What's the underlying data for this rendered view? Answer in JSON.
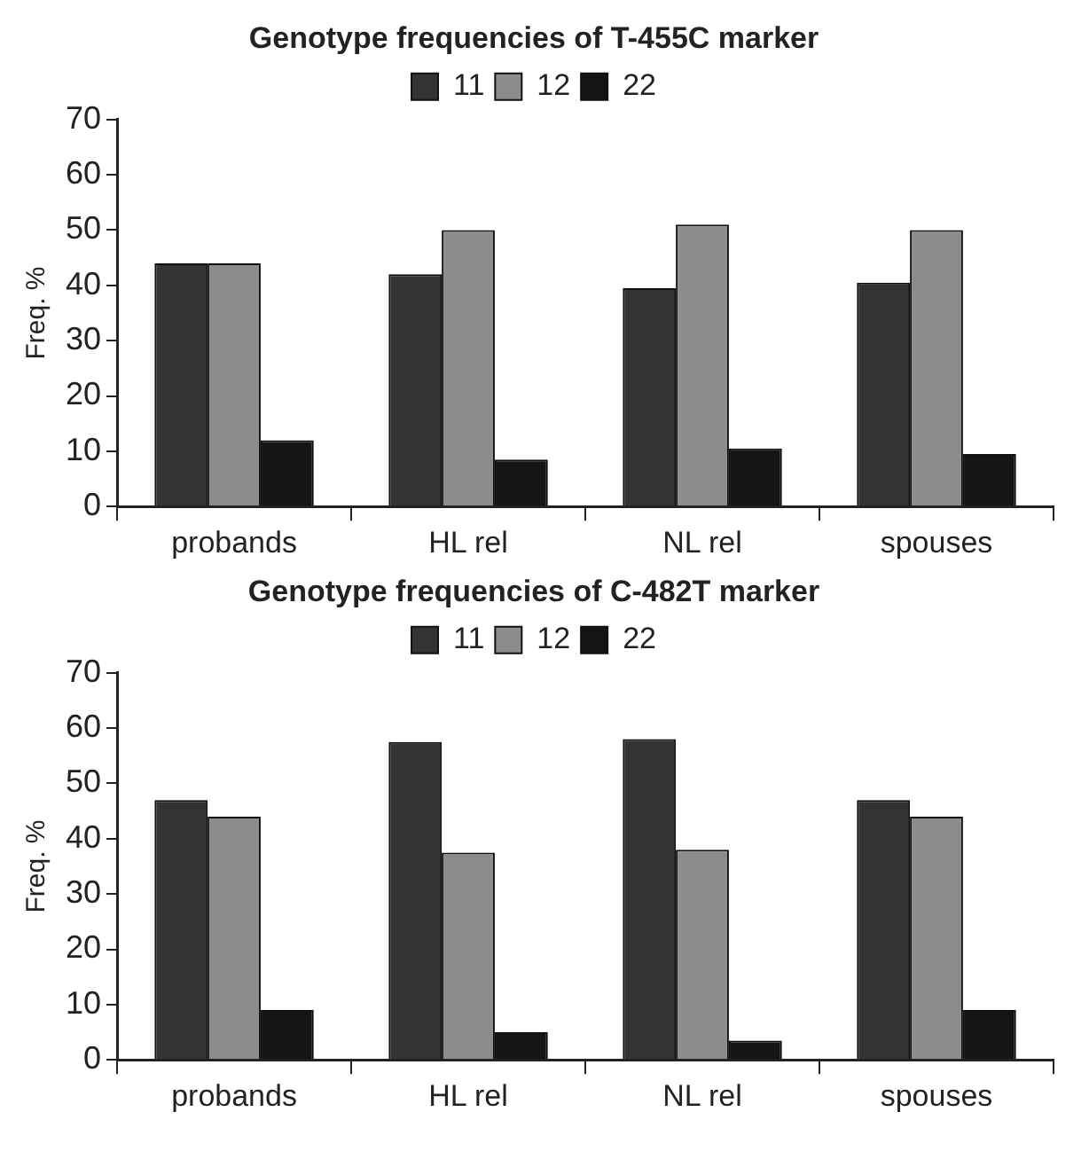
{
  "chart_data": [
    {
      "type": "bar",
      "title": "Genotype frequencies of T-455C marker",
      "ylabel": "Freq. %",
      "categories": [
        "probands",
        "HL rel",
        "NL rel",
        "spouses"
      ],
      "series": [
        {
          "name": "11",
          "color": "#333333",
          "values": [
            44,
            42,
            39.5,
            40.5
          ]
        },
        {
          "name": "12",
          "color": "#8c8c8c",
          "values": [
            44,
            50,
            51,
            50
          ]
        },
        {
          "name": "22",
          "color": "#151515",
          "values": [
            12,
            8.5,
            10.5,
            9.5
          ]
        }
      ],
      "ylim": [
        0,
        70
      ],
      "yticks": [
        0,
        10,
        20,
        30,
        40,
        50,
        60,
        70
      ],
      "grid": false,
      "legend": "top"
    },
    {
      "type": "bar",
      "title": "Genotype frequencies of C-482T marker",
      "ylabel": "Freq. %",
      "categories": [
        "probands",
        "HL rel",
        "NL rel",
        "spouses"
      ],
      "series": [
        {
          "name": "11",
          "color": "#333333",
          "values": [
            47,
            57.5,
            58,
            47
          ]
        },
        {
          "name": "12",
          "color": "#8c8c8c",
          "values": [
            44,
            37.5,
            38,
            44
          ]
        },
        {
          "name": "22",
          "color": "#151515",
          "values": [
            9,
            5,
            3.5,
            9
          ]
        }
      ],
      "ylim": [
        0,
        70
      ],
      "yticks": [
        0,
        10,
        20,
        30,
        40,
        50,
        60,
        70
      ],
      "grid": false,
      "legend": "top"
    }
  ]
}
